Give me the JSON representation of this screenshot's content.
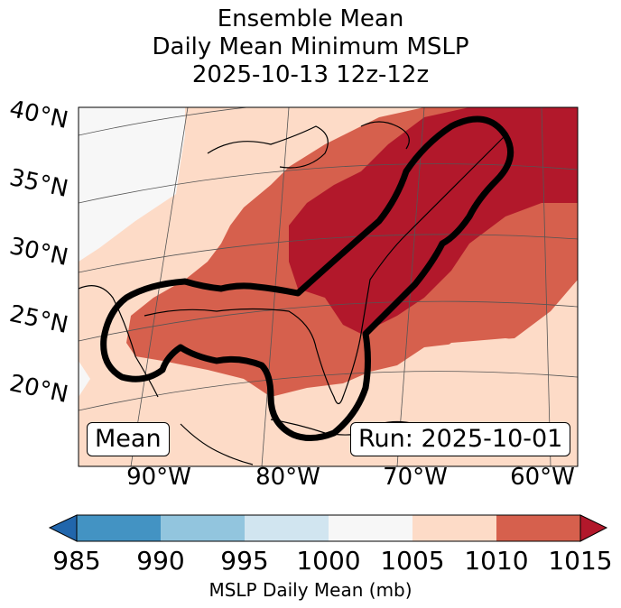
{
  "title": {
    "line1": "Ensemble Mean",
    "line2": "Daily Mean Minimum MSLP",
    "line3": "2025-10-13 12z-12z"
  },
  "map": {
    "lat_labels": [
      "40°N",
      "35°N",
      "30°N",
      "25°N",
      "20°N"
    ],
    "lon_labels": [
      "90°W",
      "80°W",
      "70°W",
      "60°W"
    ],
    "mean_box": "Mean",
    "run_box": "Run: 2025-10-01",
    "colors": {
      "land_white": "#f7f7f7",
      "c1005": "#fddbc7",
      "c1010": "#d6604d",
      "c1015": "#b2182b"
    }
  },
  "colorbar": {
    "ticks": [
      "985",
      "990",
      "995",
      "1000",
      "1005",
      "1010",
      "1015"
    ],
    "label": "MSLP Daily Mean (mb)",
    "colors": [
      "#2166ac",
      "#4393c3",
      "#92c5de",
      "#d1e5f0",
      "#f7f7f7",
      "#fddbc7",
      "#d6604d",
      "#b2182b"
    ]
  }
}
